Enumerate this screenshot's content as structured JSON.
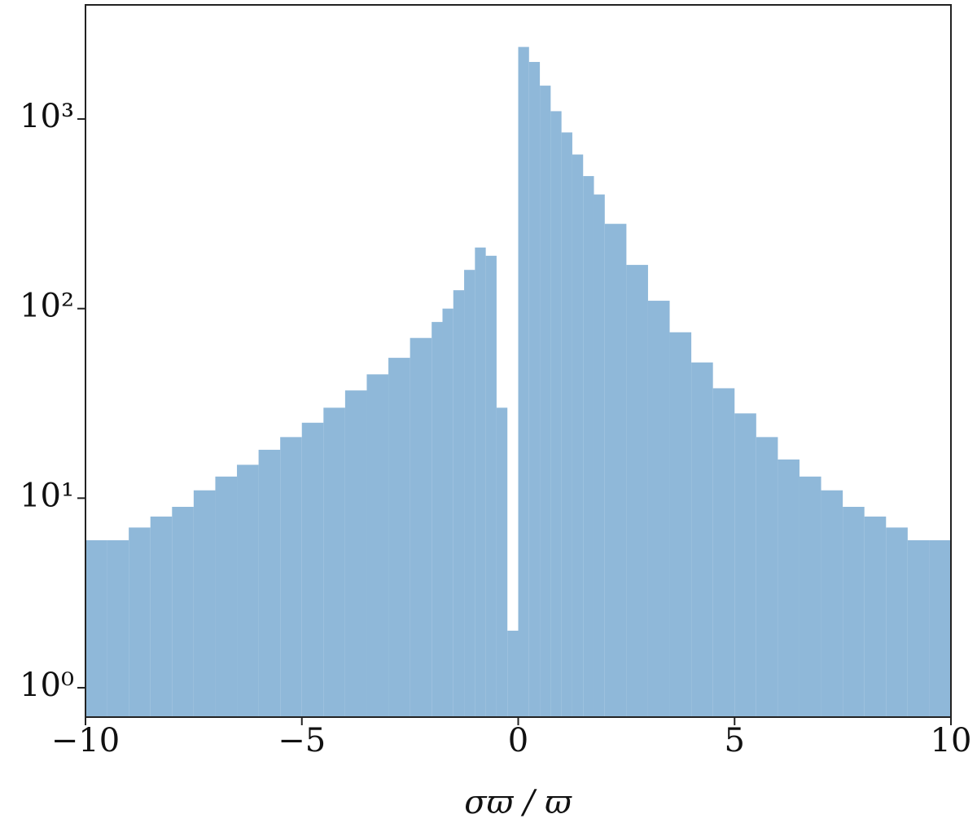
{
  "chart_data": {
    "type": "histogram",
    "xlabel": "σϖ / ϖ",
    "bins": [
      -10,
      -9.5,
      -9,
      -8.5,
      -8,
      -7.5,
      -7,
      -6.5,
      -6,
      -5.5,
      -5,
      -4.5,
      -4,
      -3.5,
      -3,
      -2.5,
      -2,
      -1.75,
      -1.5,
      -1.25,
      -1,
      -0.75,
      -0.5,
      -0.25,
      0,
      0.25,
      0.5,
      0.75,
      1,
      1.25,
      1.5,
      1.75,
      2,
      2.5,
      3,
      3.5,
      4,
      4.5,
      5,
      5.5,
      6,
      6.5,
      7,
      7.5,
      8,
      8.5,
      9,
      9.5,
      10
    ],
    "values": [
      6,
      6,
      7,
      8,
      9,
      11,
      13,
      15,
      18,
      21,
      25,
      30,
      37,
      45,
      55,
      70,
      85,
      100,
      125,
      160,
      210,
      190,
      30,
      2,
      2400,
      2000,
      1500,
      1100,
      850,
      650,
      500,
      400,
      280,
      170,
      110,
      75,
      52,
      38,
      28,
      21,
      16,
      13,
      11,
      9,
      8,
      7,
      6,
      6
    ],
    "color": "#8fb8d9",
    "log_y": true,
    "xlim": [
      -10,
      10
    ],
    "ylim": [
      0.7,
      4000
    ],
    "xticks": [
      {
        "value": -10,
        "label": "−10"
      },
      {
        "value": -5,
        "label": "−5"
      },
      0,
      5,
      10
    ],
    "yticks": [
      {
        "value": 1,
        "label": "10⁰"
      },
      {
        "value": 10,
        "label": "10¹"
      },
      {
        "value": 100,
        "label": "10²"
      },
      {
        "value": 1000,
        "label": "10³"
      }
    ]
  }
}
